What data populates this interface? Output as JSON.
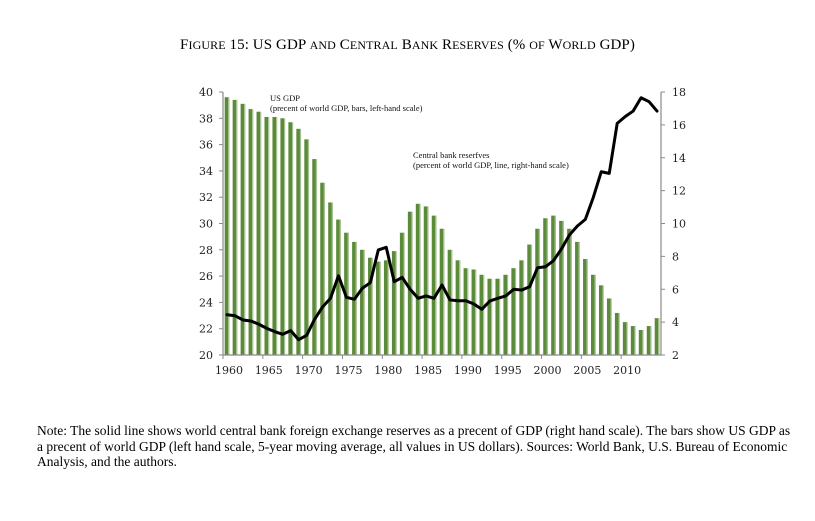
{
  "figure": {
    "title_prefix": "F",
    "title_parts": [
      {
        "text": "F",
        "small": false
      },
      {
        "text": "IGURE",
        "small": true
      },
      {
        "text": " 15: US GDP ",
        "small": false
      },
      {
        "text": "AND",
        "small": true
      },
      {
        "text": " C",
        "small": false
      },
      {
        "text": "ENTRAL",
        "small": true
      },
      {
        "text": " B",
        "small": false
      },
      {
        "text": "ANK",
        "small": true
      },
      {
        "text": " R",
        "small": false
      },
      {
        "text": "ESERVES",
        "small": true
      },
      {
        "text": " (% ",
        "small": false
      },
      {
        "text": "OF",
        "small": true
      },
      {
        "text": " W",
        "small": false
      },
      {
        "text": "ORLD",
        "small": true
      },
      {
        "text": " GDP)",
        "small": false
      }
    ],
    "note": "Note: The solid line shows world central bank foreign exchange reserves as a precent of GDP (right hand scale). The bars show US GDP as a precent of world GDP (left hand scale, 5-year moving average, all values in US dollars). Sources: World Bank, U.S. Bureau of Economic Analysis, and the authors."
  },
  "chart_data": {
    "type": "bar+line",
    "title": "Figure 15: US GDP and Central Bank Reserves (% of World GDP)",
    "x": [
      1960,
      1961,
      1962,
      1963,
      1964,
      1965,
      1966,
      1967,
      1968,
      1969,
      1970,
      1971,
      1972,
      1973,
      1974,
      1975,
      1976,
      1977,
      1978,
      1979,
      1980,
      1981,
      1982,
      1983,
      1984,
      1985,
      1986,
      1987,
      1988,
      1989,
      1990,
      1991,
      1992,
      1993,
      1994,
      1995,
      1996,
      1997,
      1998,
      1999,
      2000,
      2001,
      2002,
      2003,
      2004,
      2005,
      2006,
      2007,
      2008,
      2009,
      2010,
      2011,
      2012,
      2013,
      2014
    ],
    "x_tick_labels": [
      "1960",
      "1965",
      "1970",
      "1975",
      "1980",
      "1985",
      "1990",
      "1995",
      "2000",
      "2005",
      "2010"
    ],
    "x_tick_values": [
      1960,
      1965,
      1970,
      1975,
      1980,
      1985,
      1990,
      1995,
      2000,
      2005,
      2010
    ],
    "left_axis": {
      "ylim": [
        20,
        40
      ],
      "ticks": [
        20,
        22,
        24,
        26,
        28,
        30,
        32,
        34,
        36,
        38,
        40
      ]
    },
    "right_axis": {
      "ylim": [
        2,
        18
      ],
      "ticks": [
        2,
        4,
        6,
        8,
        10,
        12,
        14,
        16,
        18
      ]
    },
    "series": [
      {
        "name": "US GDP",
        "kind": "bar",
        "axis": "left",
        "color": "#5a8a3a",
        "annotation_line1": "US GDP",
        "annotation_line2": "(precent of world GDP, bars, left-hand scale)",
        "values": [
          39.6,
          39.4,
          39.1,
          38.7,
          38.5,
          38.1,
          38.1,
          38.0,
          37.7,
          37.2,
          36.4,
          34.9,
          33.1,
          31.6,
          30.3,
          29.3,
          28.6,
          28.0,
          27.4,
          27.1,
          27.2,
          27.9,
          29.3,
          30.9,
          31.5,
          31.3,
          30.6,
          29.6,
          28.0,
          27.2,
          26.6,
          26.5,
          26.1,
          25.8,
          25.8,
          26.1,
          26.6,
          27.2,
          28.4,
          29.6,
          30.4,
          30.6,
          30.2,
          29.6,
          28.6,
          27.3,
          26.1,
          25.3,
          24.3,
          23.2,
          22.5,
          22.2,
          21.9,
          22.2,
          22.8
        ]
      },
      {
        "name": "Central bank reserves",
        "kind": "line",
        "axis": "right",
        "color": "#000000",
        "annotation_line1": "Central bank reserfves",
        "annotation_line2": "(percent of world GDP, line, right-hand scale)",
        "values": [
          4.45,
          4.39,
          4.13,
          4.07,
          3.87,
          3.62,
          3.42,
          3.26,
          3.48,
          2.93,
          3.2,
          4.17,
          4.92,
          5.45,
          6.82,
          5.51,
          5.39,
          6.06,
          6.4,
          8.39,
          8.55,
          6.46,
          6.72,
          6.0,
          5.45,
          5.59,
          5.45,
          6.26,
          5.35,
          5.3,
          5.3,
          5.1,
          4.78,
          5.28,
          5.45,
          5.59,
          6.0,
          5.95,
          6.15,
          7.31,
          7.37,
          7.74,
          8.45,
          9.3,
          9.85,
          10.25,
          11.59,
          13.15,
          13.05,
          16.09,
          16.5,
          16.84,
          17.65,
          17.41,
          16.84
        ]
      }
    ],
    "grid": false,
    "legend": "inline annotations"
  }
}
